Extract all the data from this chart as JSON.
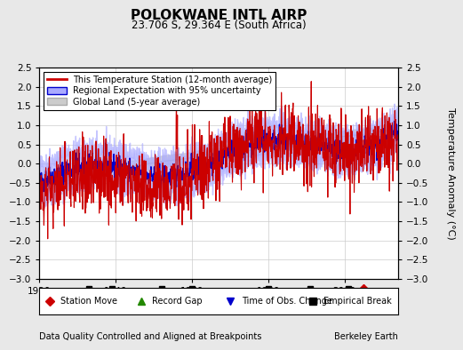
{
  "title": "POLOKWANE INTL AIRP",
  "subtitle": "23.706 S, 29.364 E (South Africa)",
  "ylabel": "Temperature Anomaly (°C)",
  "xlabel_note": "Data Quality Controlled and Aligned at Breakpoints",
  "credit": "Berkeley Earth",
  "year_start": 1920,
  "year_end": 2014,
  "ylim": [
    -3,
    2.5
  ],
  "yticks": [
    -3,
    -2.5,
    -2,
    -1.5,
    -1,
    -0.5,
    0,
    0.5,
    1,
    1.5,
    2,
    2.5
  ],
  "xticks": [
    1920,
    1940,
    1960,
    1980,
    2000
  ],
  "bg_color": "#e8e8e8",
  "plot_bg_color": "#ffffff",
  "legend_entries": [
    "This Temperature Station (12-month average)",
    "Regional Expectation with 95% uncertainty",
    "Global Land (5-year average)"
  ],
  "marker_legend": [
    {
      "label": "Station Move",
      "color": "#cc0000",
      "marker": "D"
    },
    {
      "label": "Record Gap",
      "color": "#228800",
      "marker": "^"
    },
    {
      "label": "Time of Obs. Change",
      "color": "#0000cc",
      "marker": "v"
    },
    {
      "label": "Empirical Break",
      "color": "#000000",
      "marker": "s"
    }
  ],
  "station_move_years": [
    2005
  ],
  "empirical_break_years": [
    1933,
    1939,
    1952,
    1960,
    1980,
    1991,
    2001
  ],
  "red_line_color": "#cc0000",
  "blue_line_color": "#0000cc",
  "blue_fill_color": "#aaaaff",
  "gray_line_color": "#aaaaaa",
  "gray_fill_color": "#cccccc"
}
